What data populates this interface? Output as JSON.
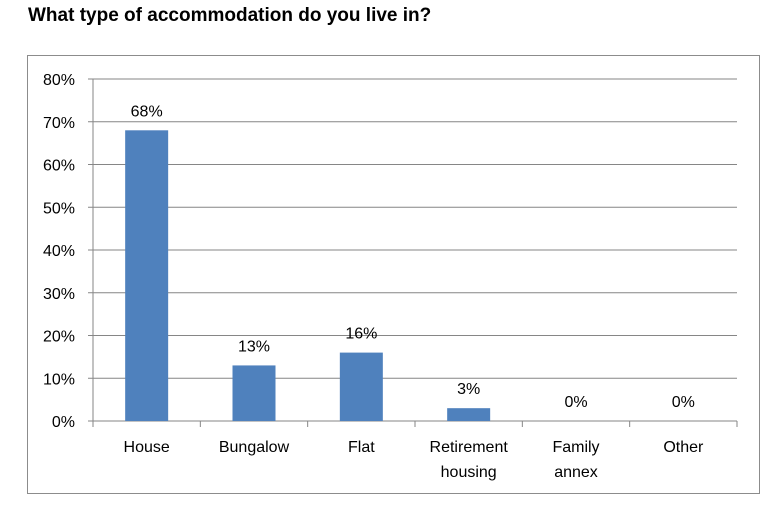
{
  "page": {
    "title": "What type of accommodation do you live in?"
  },
  "colors": {
    "bar": "#4f81bd",
    "gridline": "#868686",
    "axis": "#868686",
    "frame": "#8c8c8c"
  },
  "chart_data": {
    "type": "bar",
    "title": "What type of accommodation do you live in?",
    "xlabel": "",
    "ylabel": "",
    "categories": [
      [
        "House"
      ],
      [
        "Bungalow"
      ],
      [
        "Flat"
      ],
      [
        "Retirement",
        "housing"
      ],
      [
        "Family",
        "annex"
      ],
      [
        "Other"
      ]
    ],
    "values": [
      68,
      13,
      16,
      3,
      0,
      0
    ],
    "data_labels": [
      "68%",
      "13%",
      "16%",
      "3%",
      "0%",
      "0%"
    ],
    "ylim": [
      0,
      80
    ],
    "yticks": [
      0,
      10,
      20,
      30,
      40,
      50,
      60,
      70,
      80
    ],
    "ytick_labels": [
      "0%",
      "10%",
      "20%",
      "30%",
      "40%",
      "50%",
      "60%",
      "70%",
      "80%"
    ],
    "grid": true,
    "legend": "none"
  }
}
